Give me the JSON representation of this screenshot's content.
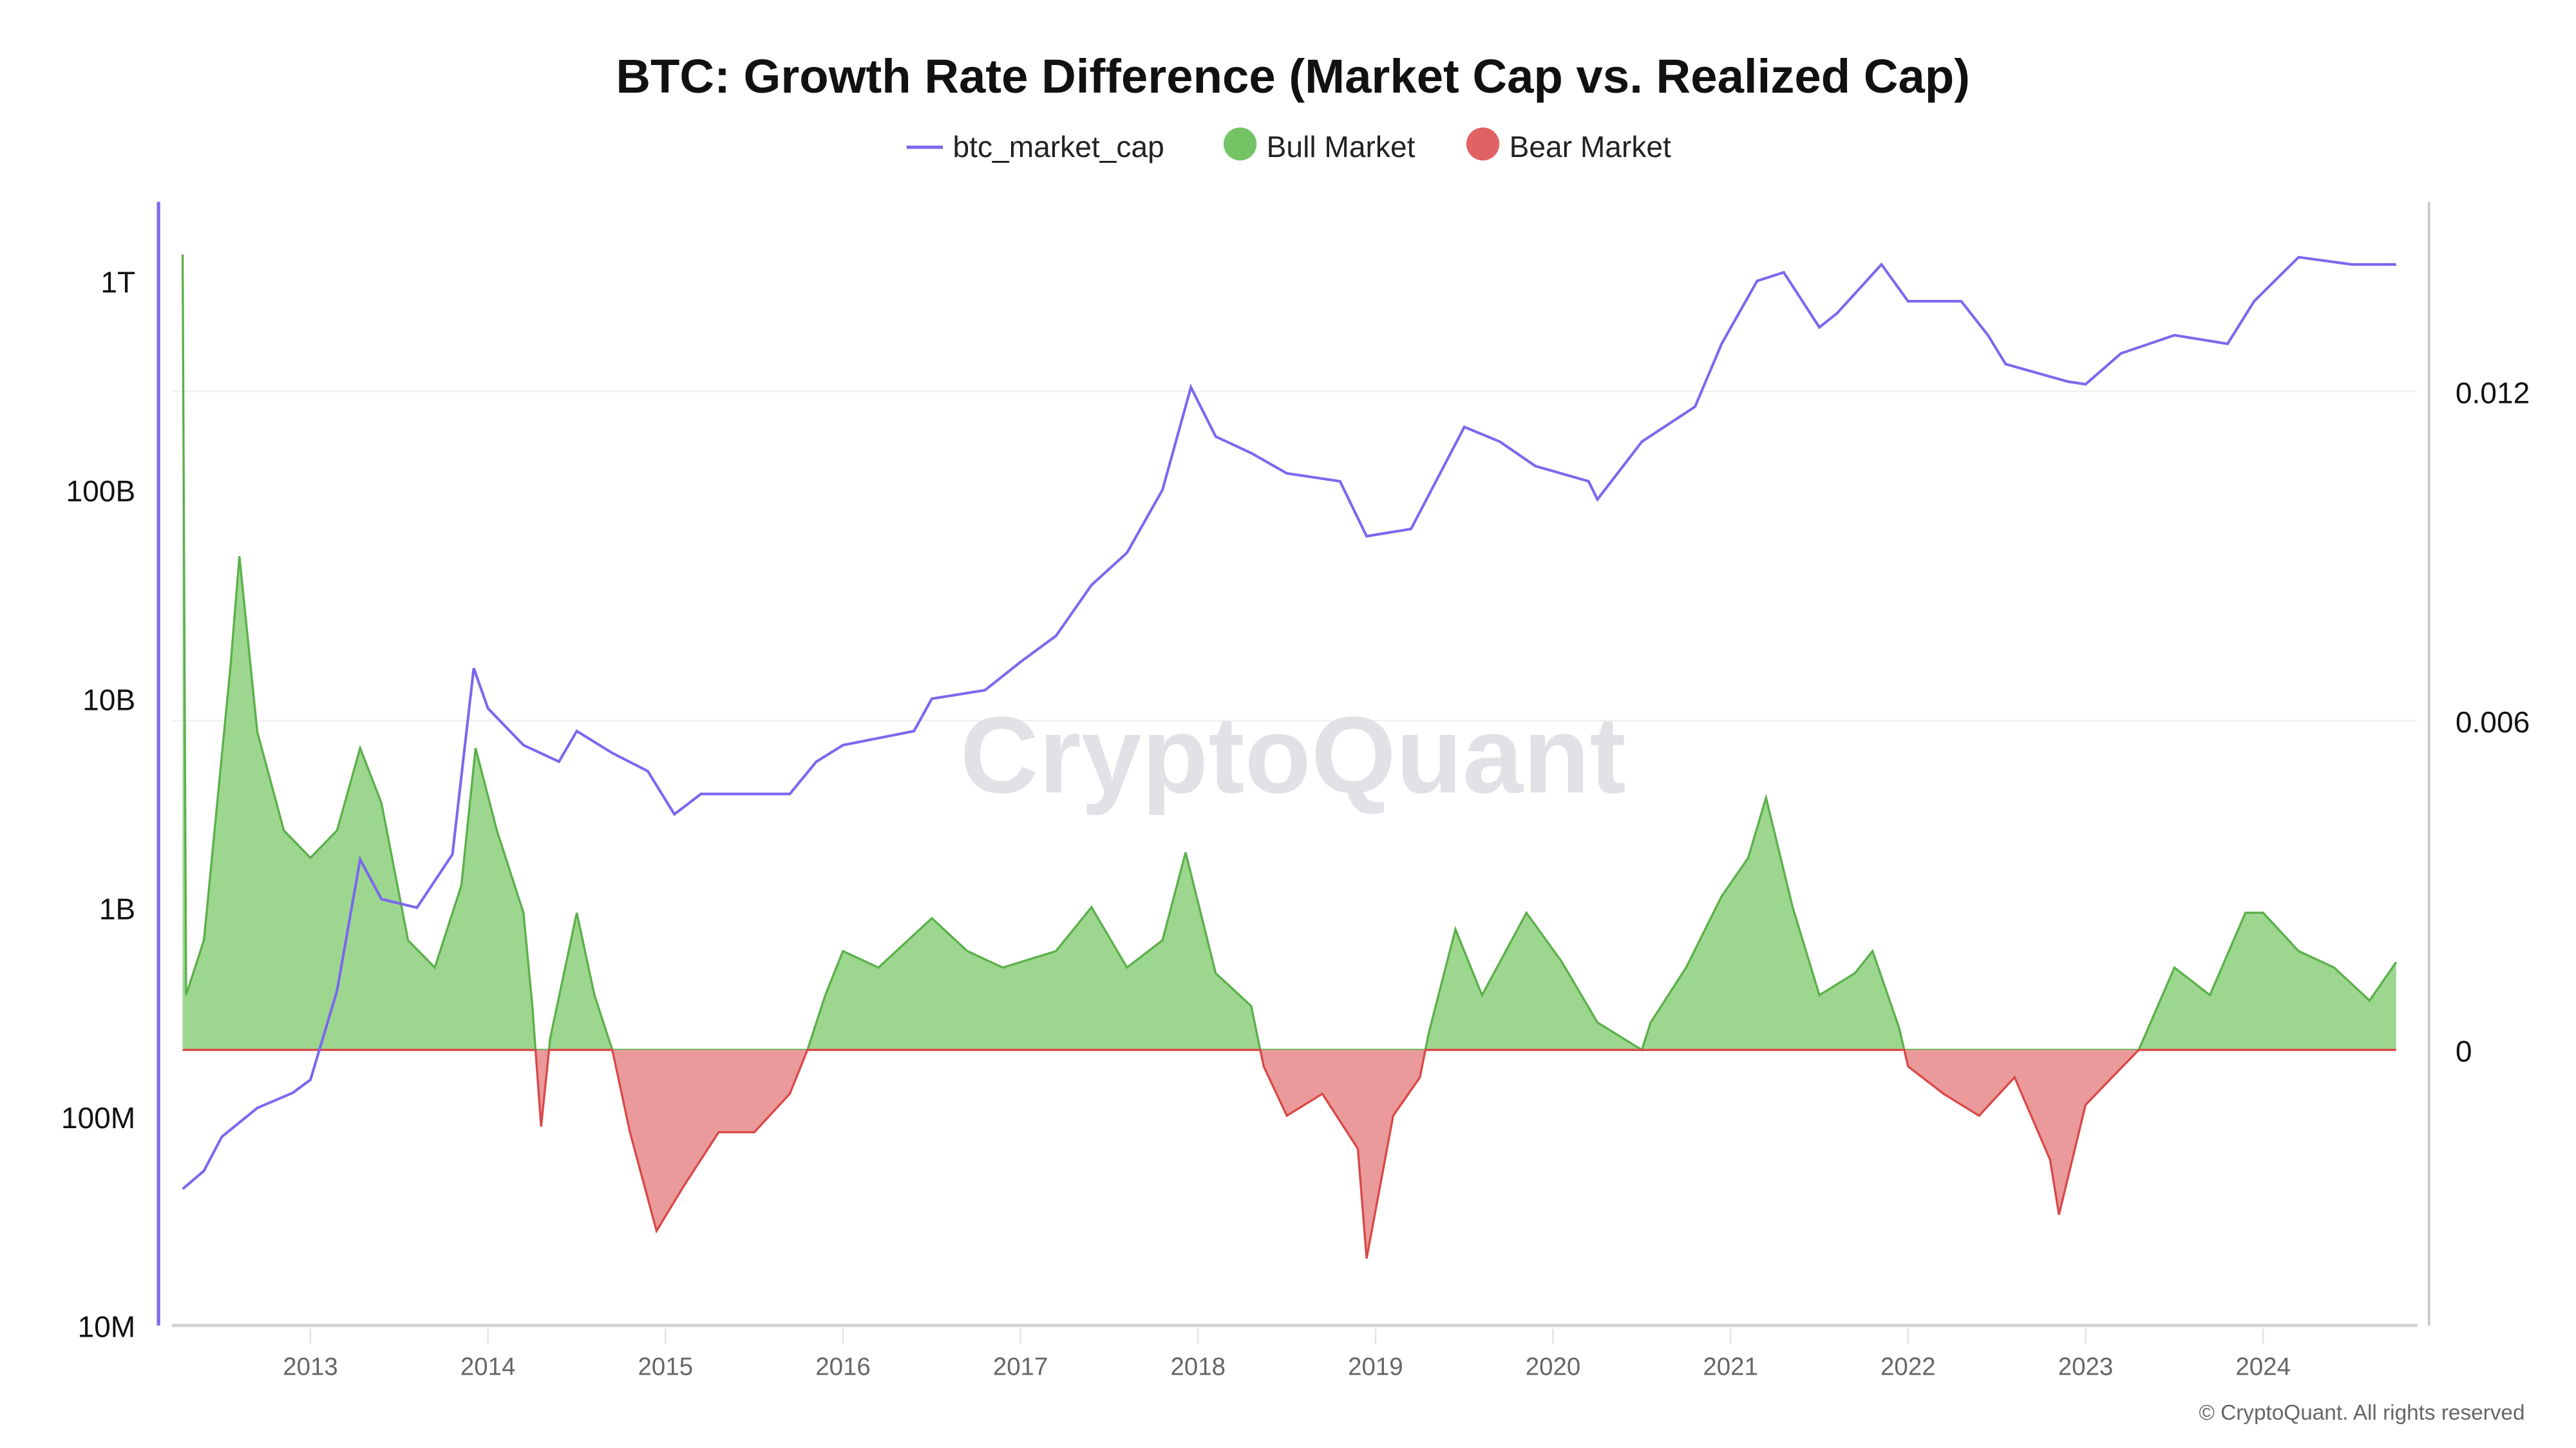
{
  "chart_data": {
    "type": "area",
    "title": "BTC: Growth Rate Difference (Market Cap vs. Realized Cap)",
    "legend": {
      "placement": "top-center",
      "items": [
        {
          "label": "btc_market_cap",
          "color": "#7b68ee",
          "marker": "line"
        },
        {
          "label": "Bull Market",
          "color": "#74c365",
          "marker": "circle"
        },
        {
          "label": "Bear Market",
          "color": "#e06262",
          "marker": "circle"
        }
      ]
    },
    "left_axis": {
      "scale": "log",
      "range": [
        10000000,
        2000000000000
      ],
      "ticks": [
        {
          "value": 1000000000000,
          "label": "1T"
        },
        {
          "value": 100000000000,
          "label": "100B"
        },
        {
          "value": 10000000000,
          "label": "10B"
        },
        {
          "value": 1000000000,
          "label": "1B"
        },
        {
          "value": 100000000,
          "label": "100M"
        },
        {
          "value": 10000000,
          "label": "10M"
        }
      ]
    },
    "right_axis": {
      "scale": "linear",
      "range": [
        -0.005,
        0.0145
      ],
      "ticks": [
        {
          "value": 0.012,
          "label": "0.012"
        },
        {
          "value": 0.006,
          "label": "0.006"
        },
        {
          "value": 0,
          "label": "0"
        }
      ]
    },
    "x_axis": {
      "range": [
        2012.2,
        2024.85
      ],
      "ticks": [
        "2013",
        "2014",
        "2015",
        "2016",
        "2017",
        "2018",
        "2019",
        "2020",
        "2021",
        "2022",
        "2023",
        "2024"
      ]
    },
    "grid": true,
    "series": [
      {
        "name": "btc_market_cap",
        "axis": "left",
        "color": "#7b68ee",
        "points": [
          [
            2012.28,
            45000000
          ],
          [
            2012.4,
            55000000
          ],
          [
            2012.5,
            80000000
          ],
          [
            2012.7,
            110000000
          ],
          [
            2012.9,
            130000000
          ],
          [
            2013.0,
            150000000
          ],
          [
            2013.15,
            400000000
          ],
          [
            2013.28,
            1700000000
          ],
          [
            2013.4,
            1100000000
          ],
          [
            2013.6,
            1000000000
          ],
          [
            2013.8,
            1800000000
          ],
          [
            2013.92,
            14000000000
          ],
          [
            2014.0,
            9000000000
          ],
          [
            2014.2,
            6000000000
          ],
          [
            2014.4,
            5000000000
          ],
          [
            2014.5,
            7000000000
          ],
          [
            2014.7,
            5500000000
          ],
          [
            2014.9,
            4500000000
          ],
          [
            2015.05,
            2800000000
          ],
          [
            2015.2,
            3500000000
          ],
          [
            2015.5,
            3500000000
          ],
          [
            2015.7,
            3500000000
          ],
          [
            2015.85,
            5000000000
          ],
          [
            2016.0,
            6000000000
          ],
          [
            2016.4,
            7000000000
          ],
          [
            2016.5,
            10000000000
          ],
          [
            2016.8,
            11000000000
          ],
          [
            2017.0,
            15000000000
          ],
          [
            2017.2,
            20000000000
          ],
          [
            2017.4,
            35000000000
          ],
          [
            2017.6,
            50000000000
          ],
          [
            2017.8,
            100000000000
          ],
          [
            2017.96,
            310000000000
          ],
          [
            2018.1,
            180000000000
          ],
          [
            2018.3,
            150000000000
          ],
          [
            2018.5,
            120000000000
          ],
          [
            2018.8,
            110000000000
          ],
          [
            2018.95,
            60000000000
          ],
          [
            2019.2,
            65000000000
          ],
          [
            2019.5,
            200000000000
          ],
          [
            2019.7,
            170000000000
          ],
          [
            2019.9,
            130000000000
          ],
          [
            2020.2,
            110000000000
          ],
          [
            2020.25,
            90000000000
          ],
          [
            2020.5,
            170000000000
          ],
          [
            2020.8,
            250000000000
          ],
          [
            2020.95,
            500000000000
          ],
          [
            2021.15,
            1000000000000
          ],
          [
            2021.3,
            1100000000000
          ],
          [
            2021.5,
            600000000000
          ],
          [
            2021.6,
            700000000000
          ],
          [
            2021.85,
            1200000000000
          ],
          [
            2022.0,
            800000000000
          ],
          [
            2022.3,
            800000000000
          ],
          [
            2022.45,
            550000000000
          ],
          [
            2022.55,
            400000000000
          ],
          [
            2022.9,
            330000000000
          ],
          [
            2023.0,
            320000000000
          ],
          [
            2023.2,
            450000000000
          ],
          [
            2023.5,
            550000000000
          ],
          [
            2023.8,
            500000000000
          ],
          [
            2023.95,
            800000000000
          ],
          [
            2024.2,
            1300000000000
          ],
          [
            2024.5,
            1200000000000
          ],
          [
            2024.75,
            1200000000000
          ]
        ]
      },
      {
        "name": "growth_rate_difference",
        "axis": "right",
        "positive_label": "Bull Market",
        "negative_label": "Bear Market",
        "points": [
          [
            2012.28,
            0.0145
          ],
          [
            2012.3,
            0.001
          ],
          [
            2012.4,
            0.002
          ],
          [
            2012.55,
            0.007
          ],
          [
            2012.6,
            0.009
          ],
          [
            2012.7,
            0.0058
          ],
          [
            2012.85,
            0.004
          ],
          [
            2013.0,
            0.0035
          ],
          [
            2013.15,
            0.004
          ],
          [
            2013.28,
            0.0055
          ],
          [
            2013.4,
            0.0045
          ],
          [
            2013.55,
            0.002
          ],
          [
            2013.7,
            0.0015
          ],
          [
            2013.85,
            0.003
          ],
          [
            2013.93,
            0.0055
          ],
          [
            2014.05,
            0.004
          ],
          [
            2014.2,
            0.0025
          ],
          [
            2014.25,
            0.0008
          ],
          [
            2014.3,
            -0.0014
          ],
          [
            2014.35,
            0.0002
          ],
          [
            2014.5,
            0.0025
          ],
          [
            2014.6,
            0.001
          ],
          [
            2014.7,
            0
          ],
          [
            2014.8,
            -0.0015
          ],
          [
            2014.95,
            -0.0033
          ],
          [
            2015.1,
            -0.0025
          ],
          [
            2015.3,
            -0.0015
          ],
          [
            2015.5,
            -0.0015
          ],
          [
            2015.7,
            -0.0008
          ],
          [
            2015.8,
            0
          ],
          [
            2015.9,
            0.001
          ],
          [
            2016.0,
            0.0018
          ],
          [
            2016.2,
            0.0015
          ],
          [
            2016.5,
            0.0024
          ],
          [
            2016.7,
            0.0018
          ],
          [
            2016.9,
            0.0015
          ],
          [
            2017.2,
            0.0018
          ],
          [
            2017.4,
            0.0026
          ],
          [
            2017.6,
            0.0015
          ],
          [
            2017.8,
            0.002
          ],
          [
            2017.93,
            0.0036
          ],
          [
            2018.1,
            0.0014
          ],
          [
            2018.3,
            0.0008
          ],
          [
            2018.37,
            -0.0003
          ],
          [
            2018.5,
            -0.0012
          ],
          [
            2018.7,
            -0.0008
          ],
          [
            2018.9,
            -0.0018
          ],
          [
            2018.95,
            -0.0038
          ],
          [
            2019.1,
            -0.0012
          ],
          [
            2019.25,
            -0.0005
          ],
          [
            2019.3,
            0.0003
          ],
          [
            2019.45,
            0.0022
          ],
          [
            2019.6,
            0.001
          ],
          [
            2019.85,
            0.0025
          ],
          [
            2020.05,
            0.0016
          ],
          [
            2020.25,
            0.0005
          ],
          [
            2020.5,
            0
          ],
          [
            2020.55,
            0.0005
          ],
          [
            2020.75,
            0.0015
          ],
          [
            2020.95,
            0.0028
          ],
          [
            2021.1,
            0.0035
          ],
          [
            2021.2,
            0.0046
          ],
          [
            2021.35,
            0.0026
          ],
          [
            2021.5,
            0.001
          ],
          [
            2021.7,
            0.0014
          ],
          [
            2021.8,
            0.0018
          ],
          [
            2021.95,
            0.0004
          ],
          [
            2022.0,
            -0.0003
          ],
          [
            2022.2,
            -0.0008
          ],
          [
            2022.4,
            -0.0012
          ],
          [
            2022.6,
            -0.0005
          ],
          [
            2022.8,
            -0.002
          ],
          [
            2022.85,
            -0.003
          ],
          [
            2023.0,
            -0.001
          ],
          [
            2023.15,
            -0.0005
          ],
          [
            2023.3,
            0
          ],
          [
            2023.5,
            0.0015
          ],
          [
            2023.7,
            0.001
          ],
          [
            2023.9,
            0.0025
          ],
          [
            2024.0,
            0.0025
          ],
          [
            2024.2,
            0.0018
          ],
          [
            2024.4,
            0.0015
          ],
          [
            2024.6,
            0.0009
          ],
          [
            2024.75,
            0.0016
          ]
        ]
      }
    ],
    "colors": {
      "bull_fill": "#9dd68f",
      "bull_line": "#5bb04a",
      "bear_fill": "#ea9a9a",
      "bear_line": "#d94848",
      "market_cap": "#7b68ee"
    }
  },
  "watermark": "CryptoQuant",
  "copyright": "© CryptoQuant. All rights reserved"
}
